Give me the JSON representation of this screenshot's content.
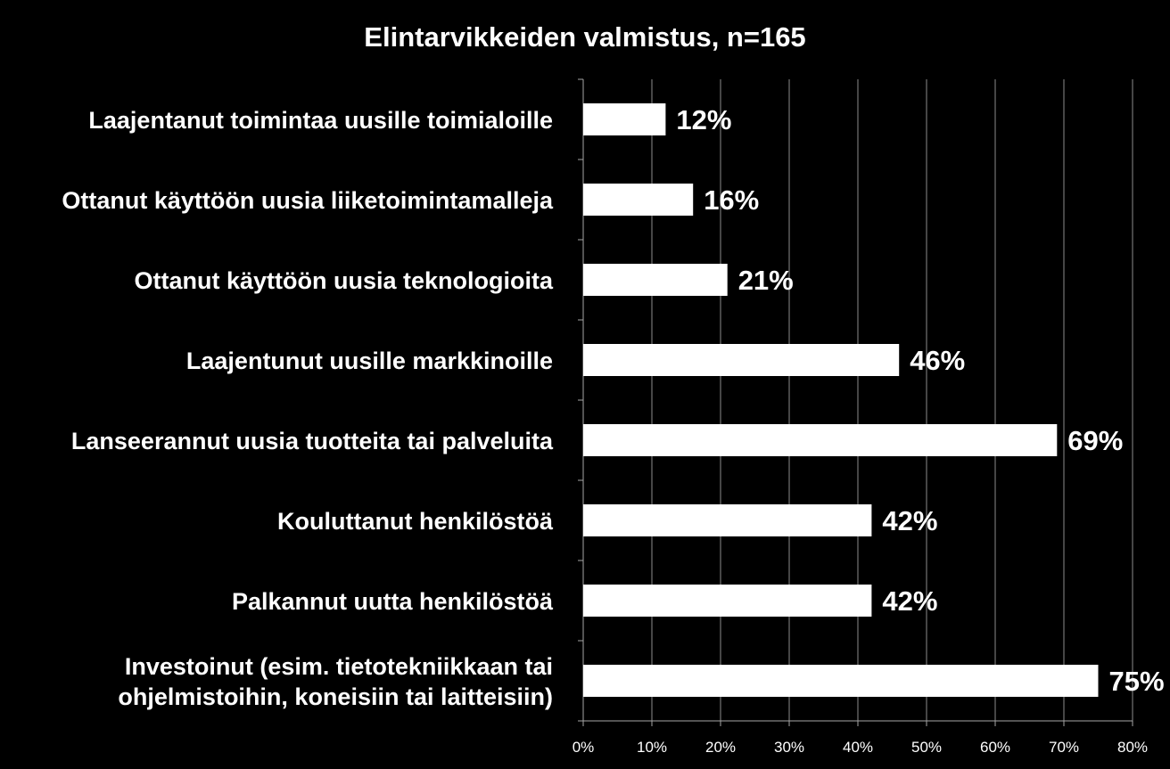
{
  "chart_data": {
    "type": "bar",
    "orientation": "horizontal",
    "title": "Elintarvikkeiden valmistus, n=165",
    "xlabel": "",
    "ylabel": "",
    "categories": [
      [
        "Laajentanut toimintaa uusille toimialoille"
      ],
      [
        "Ottanut käyttöön uusia liiketoimintamalleja"
      ],
      [
        "Ottanut käyttöön uusia teknologioita"
      ],
      [
        "Laajentunut uusille markkinoille"
      ],
      [
        "Lanseerannut uusia tuotteita tai palveluita"
      ],
      [
        "Kouluttanut henkilöstöä"
      ],
      [
        "Palkannut uutta henkilöstöä"
      ],
      [
        "Investoinut  (esim. tietotekniikkaan tai",
        "ohjelmistoihin, koneisiin tai laitteisiin)"
      ]
    ],
    "values": [
      12,
      16,
      21,
      46,
      69,
      42,
      42,
      75
    ],
    "data_labels": [
      "12%",
      "16%",
      "21%",
      "46%",
      "69%",
      "42%",
      "42%",
      "75%"
    ],
    "xlim": [
      0,
      80
    ],
    "x_ticks": [
      0,
      10,
      20,
      30,
      40,
      50,
      60,
      70,
      80
    ],
    "x_tick_labels": [
      "0%",
      "10%",
      "20%",
      "30%",
      "40%",
      "50%",
      "60%",
      "70%",
      "80%"
    ],
    "grid": true,
    "legend": "none",
    "colors": {
      "background": "#000000",
      "bar": "#ffffff",
      "text": "#ffffff",
      "gridline": "#8c8c8c",
      "axis": "#a6a6a6"
    }
  }
}
